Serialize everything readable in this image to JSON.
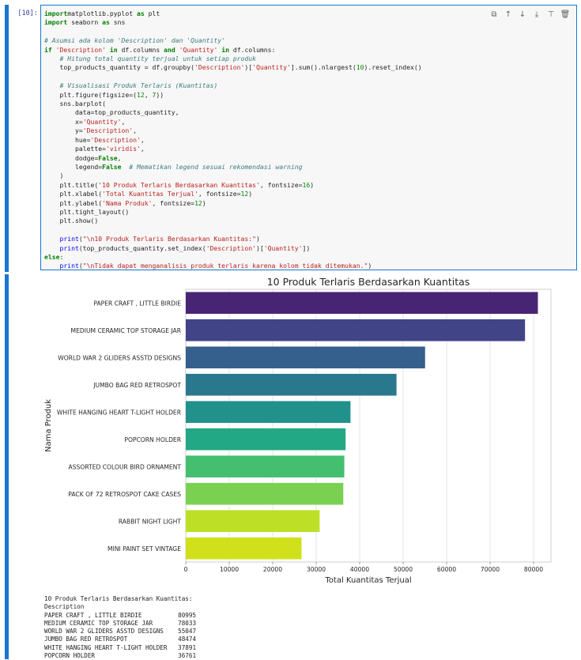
{
  "cell": {
    "prompt": "[10]:",
    "code_lines": [
      [
        [
          "kw",
          "import"
        ],
        [
          "",
          "matplotlib.pyplot"
        ],
        [
          "kw",
          " as"
        ],
        [
          "",
          " plt"
        ]
      ],
      [
        [
          "kw",
          "import"
        ],
        [
          "",
          " seaborn"
        ],
        [
          "kw",
          " as"
        ],
        [
          "",
          " sns"
        ]
      ],
      [],
      [
        [
          "cm",
          "# Asumsi ada kolom 'Description' dan 'Quantity'"
        ]
      ],
      [
        [
          "kw",
          "if"
        ],
        [
          "st",
          " 'Description'"
        ],
        [
          "kw",
          " in"
        ],
        [
          "",
          " df.columns"
        ],
        [
          "kw",
          " and"
        ],
        [
          "st",
          " 'Quantity'"
        ],
        [
          "kw",
          " in"
        ],
        [
          "",
          " df.columns:"
        ]
      ],
      [
        [
          "",
          "    "
        ],
        [
          "cm",
          "# Hitung total quantity terjual untuk setiap produk"
        ]
      ],
      [
        [
          "",
          "    top_products_quantity = df.groupby("
        ],
        [
          "st",
          "'Description'"
        ],
        [
          "",
          ")["
        ],
        [
          "st",
          "'Quantity'"
        ],
        [
          "",
          "].sum().nlargest("
        ],
        [
          "nu",
          "10"
        ],
        [
          "",
          ").reset_index()"
        ]
      ],
      [],
      [
        [
          "",
          "    "
        ],
        [
          "cm",
          "# Visualisasi Produk Terlaris (Kuantitas)"
        ]
      ],
      [
        [
          "",
          "    plt.figure(figsize=("
        ],
        [
          "nu",
          "12"
        ],
        [
          "",
          ", "
        ],
        [
          "nu",
          "7"
        ],
        [
          "",
          "))"
        ]
      ],
      [
        [
          "",
          "    sns.barplot("
        ]
      ],
      [
        [
          "",
          "        data=top_products_quantity,"
        ]
      ],
      [
        [
          "",
          "        x="
        ],
        [
          "st",
          "'Quantity'"
        ],
        [
          "",
          ","
        ]
      ],
      [
        [
          "",
          "        y="
        ],
        [
          "st",
          "'Description'"
        ],
        [
          "",
          ","
        ]
      ],
      [
        [
          "",
          "        hue="
        ],
        [
          "st",
          "'Description'"
        ],
        [
          "",
          ","
        ]
      ],
      [
        [
          "",
          "        palette="
        ],
        [
          "st",
          "'viridis'"
        ],
        [
          "",
          ","
        ]
      ],
      [
        [
          "",
          "        dodge="
        ],
        [
          "kw",
          "False"
        ],
        [
          "",
          ","
        ]
      ],
      [
        [
          "",
          "        legend="
        ],
        [
          "kw",
          "False"
        ],
        [
          "",
          "  "
        ],
        [
          "cm",
          "# Mematikan legend sesuai rekomendasi warning"
        ]
      ],
      [
        [
          "",
          "    )"
        ]
      ],
      [
        [
          "",
          "    plt.title("
        ],
        [
          "st",
          "'10 Produk Terlaris Berdasarkan Kuantitas'"
        ],
        [
          "",
          ", fontsize="
        ],
        [
          "nu",
          "16"
        ],
        [
          "",
          ")"
        ]
      ],
      [
        [
          "",
          "    plt.xlabel("
        ],
        [
          "st",
          "'Total Kuantitas Terjual'"
        ],
        [
          "",
          ", fontsize="
        ],
        [
          "nu",
          "12"
        ],
        [
          "",
          ")"
        ]
      ],
      [
        [
          "",
          "    plt.ylabel("
        ],
        [
          "st",
          "'Nama Produk'"
        ],
        [
          "",
          ", fontsize="
        ],
        [
          "nu",
          "12"
        ],
        [
          "",
          ")"
        ]
      ],
      [
        [
          "",
          "    plt.tight_layout()"
        ]
      ],
      [
        [
          "",
          "    plt.show()"
        ]
      ],
      [],
      [
        [
          "",
          "    "
        ],
        [
          "fn",
          "print"
        ],
        [
          "",
          "("
        ],
        [
          "st",
          "\"\\n10 Produk Terlaris Berdasarkan Kuantitas:\""
        ],
        [
          "",
          ")"
        ]
      ],
      [
        [
          "",
          "    "
        ],
        [
          "fn",
          "print"
        ],
        [
          "",
          "(top_products_quantity.set_index("
        ],
        [
          "st",
          "'Description'"
        ],
        [
          "",
          ")["
        ],
        [
          "st",
          "'Quantity'"
        ],
        [
          "",
          "])"
        ]
      ],
      [
        [
          "kw",
          "else"
        ],
        [
          "",
          ":"
        ]
      ],
      [
        [
          "",
          "    "
        ],
        [
          "fn",
          "print"
        ],
        [
          "",
          "("
        ],
        [
          "st",
          "\"\\nTidak dapat menganalisis produk terlaris karena kolom tidak ditemukan.\""
        ],
        [
          "",
          ")"
        ]
      ]
    ]
  },
  "toolbar": {
    "icons": [
      "copy-icon",
      "move-up-icon",
      "move-down-icon",
      "insert-below-icon",
      "format-icon",
      "delete-icon"
    ],
    "glyphs": [
      "⧉",
      "↑",
      "↓",
      "⤓",
      "⊤",
      "🗑"
    ]
  },
  "chart_data": {
    "type": "bar",
    "orientation": "horizontal",
    "title": "10 Produk Terlaris Berdasarkan Kuantitas",
    "xlabel": "Total Kuantitas Terjual",
    "ylabel": "Nama Produk",
    "xlim": [
      0,
      84000
    ],
    "xticks": [
      0,
      10000,
      20000,
      30000,
      40000,
      50000,
      60000,
      70000,
      80000
    ],
    "grid": "vertical",
    "palette": "viridis",
    "categories": [
      "PAPER CRAFT , LITTLE BIRDIE",
      "MEDIUM CERAMIC TOP STORAGE JAR",
      "WORLD WAR 2 GLIDERS ASSTD DESIGNS",
      "JUMBO BAG RED RETROSPOT",
      "WHITE HANGING HEART T-LIGHT HOLDER",
      "POPCORN HOLDER",
      "ASSORTED COLOUR BIRD ORNAMENT",
      "PACK OF 72 RETROSPOT CAKE CASES",
      "RABBIT NIGHT LIGHT",
      "MINI PAINT SET VINTAGE"
    ],
    "values": [
      80995,
      78033,
      55047,
      48474,
      37891,
      36761,
      36461,
      36231,
      30788,
      26633
    ],
    "colors": [
      "#482475",
      "#414487",
      "#355f8d",
      "#2a788e",
      "#21918c",
      "#22a884",
      "#44bf70",
      "#7ad151",
      "#bddf26",
      "#d0e11c"
    ]
  },
  "output": {
    "lines": [
      "10 Produk Terlaris Berdasarkan Kuantitas:",
      "Description",
      "PAPER CRAFT , LITTLE BIRDIE          80995",
      "MEDIUM CERAMIC TOP STORAGE JAR       78033",
      "WORLD WAR 2 GLIDERS ASSTD DESIGNS    55047",
      "JUMBO BAG RED RETROSPOT              48474",
      "WHITE HANGING HEART T-LIGHT HOLDER   37891",
      "POPCORN HOLDER                       36761"
    ]
  }
}
